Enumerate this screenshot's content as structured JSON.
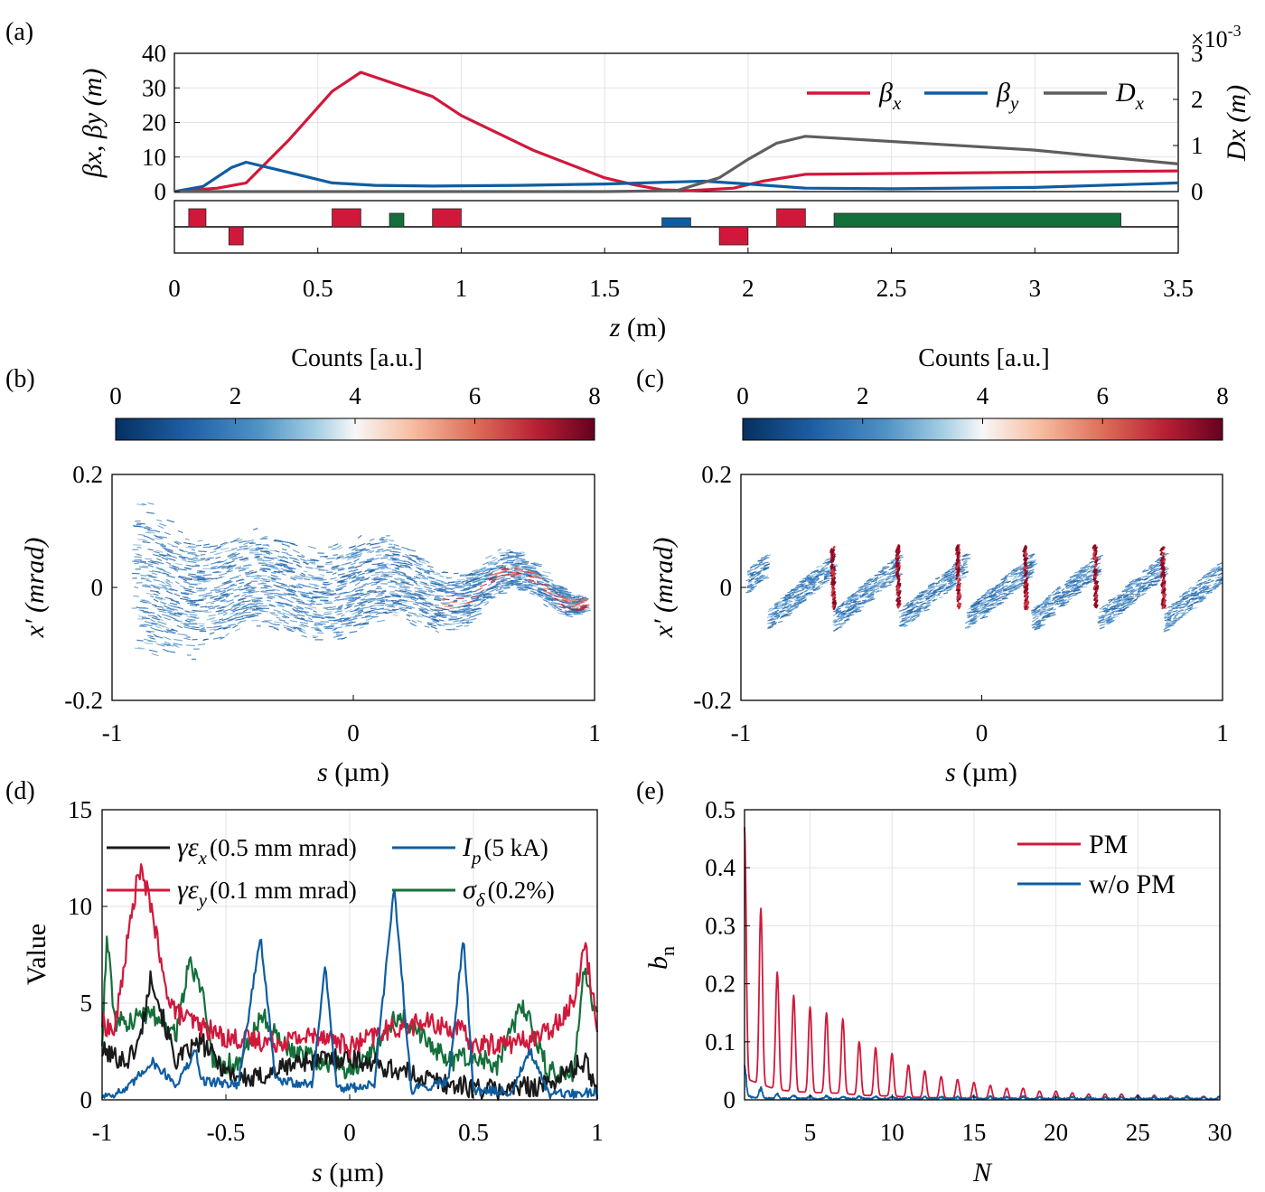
{
  "colors": {
    "red": "#D1183B",
    "blue": "#0E5DA2",
    "gray": "#5E5E5E",
    "green": "#14703A",
    "black": "#1A1A1A"
  },
  "chart_data": [
    {
      "panel": "a",
      "type": "line",
      "panel_label": "(a)",
      "xlabel_sym": "z",
      "xlabel_unit": " (m)",
      "ylabel": "βx, βy (m)",
      "ylabel_right": "Dx (m)",
      "right_multiplier_base": "×10",
      "right_multiplier_exp": "-3",
      "xlim": [
        0,
        3.5
      ],
      "ylim": [
        0,
        40
      ],
      "ylim_right": [
        0,
        3
      ],
      "xticks": [
        "0",
        "0.5",
        "1",
        "1.5",
        "2",
        "2.5",
        "3",
        "3.5"
      ],
      "yticks": [
        "0",
        "10",
        "20",
        "30",
        "40"
      ],
      "yticks_right": [
        "0",
        "1",
        "2",
        "3"
      ],
      "grid": true,
      "legend_position": "top-right",
      "series": [
        {
          "name": "βx",
          "sym": "β",
          "sub": "x",
          "color": "red",
          "axis": "left",
          "x": [
            0,
            0.15,
            0.25,
            0.4,
            0.55,
            0.65,
            0.9,
            1.0,
            1.25,
            1.5,
            1.6,
            1.7,
            1.8,
            1.95,
            2.05,
            2.2,
            3.5
          ],
          "y": [
            0,
            1,
            2.5,
            15,
            29,
            34.5,
            27.5,
            22,
            12,
            4,
            2,
            0.5,
            0.3,
            1,
            3,
            5,
            6
          ]
        },
        {
          "name": "βy",
          "sym": "β",
          "sub": "y",
          "color": "blue",
          "axis": "left",
          "x": [
            0,
            0.1,
            0.2,
            0.25,
            0.35,
            0.55,
            0.7,
            0.9,
            1.2,
            1.5,
            1.75,
            1.85,
            2.0,
            2.2,
            2.5,
            3.0,
            3.5
          ],
          "y": [
            0,
            1.5,
            7,
            8.5,
            6.5,
            2.5,
            1.8,
            1.6,
            1.8,
            2.2,
            2.8,
            3,
            2.2,
            1,
            0.8,
            1.2,
            2.5
          ]
        },
        {
          "name": "Dx",
          "sym": "D",
          "sub": "x",
          "color": "gray",
          "axis": "right",
          "x": [
            0,
            1.5,
            1.75,
            1.9,
            2.0,
            2.1,
            2.2,
            3.0,
            3.5
          ],
          "y": [
            0,
            0,
            0.02,
            0.3,
            0.7,
            1.05,
            1.2,
            0.9,
            0.6
          ]
        }
      ],
      "lattice": {
        "elements": [
          {
            "type": "quad-focusing",
            "color": "red",
            "z0": 0.05,
            "z1": 0.11
          },
          {
            "type": "quad-defocusing",
            "color": "red",
            "z0": 0.19,
            "z1": 0.24
          },
          {
            "type": "quad-focusing",
            "color": "red",
            "z0": 0.55,
            "z1": 0.65
          },
          {
            "type": "element",
            "color": "green",
            "z0": 0.75,
            "z1": 0.8
          },
          {
            "type": "quad-focusing",
            "color": "red",
            "z0": 0.9,
            "z1": 1.0
          },
          {
            "type": "element",
            "color": "blue",
            "z0": 1.7,
            "z1": 1.8
          },
          {
            "type": "quad-defocusing",
            "color": "red",
            "z0": 1.9,
            "z1": 2.0
          },
          {
            "type": "quad-focusing",
            "color": "red",
            "z0": 2.1,
            "z1": 2.2
          },
          {
            "type": "element",
            "color": "green",
            "z0": 2.3,
            "z1": 3.3
          }
        ]
      }
    },
    {
      "panel": "b",
      "type": "heatmap",
      "panel_label": "(b)",
      "colorbar_label": "Counts [a.u.]",
      "colorbar_ticks": [
        "0",
        "2",
        "4",
        "6",
        "8"
      ],
      "colorbar_range": [
        0,
        8
      ],
      "xlabel_sym": "s",
      "xlabel_unit": " (µm)",
      "ylabel": "x′ (mrad)",
      "xlim": [
        -1,
        1
      ],
      "ylim": [
        -0.2,
        0.2
      ],
      "xticks": [
        "-1",
        "0",
        "1"
      ],
      "yticks": [
        "-0.2",
        "0",
        "0.2"
      ],
      "description_pattern": "noisy wavy band, wide at s=-1 narrowing towards s=1",
      "band_envelope": {
        "s": [
          -0.9,
          -0.5,
          0,
          0.5,
          0.95
        ],
        "halfwidth_mrad": [
          0.15,
          0.09,
          0.09,
          0.05,
          0.02
        ]
      }
    },
    {
      "panel": "c",
      "type": "heatmap",
      "panel_label": "(c)",
      "colorbar_label": "Counts [a.u.]",
      "colorbar_ticks": [
        "0",
        "2",
        "4",
        "6",
        "8"
      ],
      "colorbar_range": [
        0,
        8
      ],
      "xlabel_sym": "s",
      "xlabel_unit": " (µm)",
      "ylabel": "x′ (mrad)",
      "xlim": [
        -1,
        1
      ],
      "ylim": [
        -0.2,
        0.2
      ],
      "xticks": [
        "-1",
        "0",
        "1"
      ],
      "yticks": [
        "-0.2",
        "0",
        "0.2"
      ],
      "description_pattern": "periodic sawtooth microbunches with dense red vertical spikes",
      "spike_positions_um": [
        -0.62,
        -0.35,
        -0.1,
        0.18,
        0.47,
        0.75
      ]
    },
    {
      "panel": "d",
      "type": "line",
      "panel_label": "(d)",
      "ylabel": "Value",
      "xlabel_sym": "s",
      "xlabel_unit": " (µm)",
      "xlim": [
        -1,
        1
      ],
      "ylim": [
        0,
        15
      ],
      "xticks": [
        "-1",
        "-0.5",
        "0",
        "0.5",
        "1"
      ],
      "yticks": [
        "0",
        "5",
        "10",
        "15"
      ],
      "grid": true,
      "legend_position": "top",
      "series": [
        {
          "name": "γεx (0.5 mm mrad)",
          "sym": "γε",
          "sub": "x",
          "note": "(0.5 mm mrad)",
          "color": "black",
          "x": [
            -1,
            -0.9,
            -0.85,
            -0.8,
            -0.75,
            -0.7,
            -0.6,
            -0.5,
            -0.4,
            -0.2,
            0,
            0.2,
            0.4,
            0.6,
            0.8,
            0.95,
            1
          ],
          "y": [
            2.5,
            2,
            3,
            6.5,
            4,
            2,
            3,
            1.5,
            1,
            2,
            2.2,
            1.5,
            0.8,
            0.5,
            0.8,
            2,
            0.5
          ]
        },
        {
          "name": "γεy (0.1 mm mrad)",
          "sym": "γε",
          "sub": "y",
          "note": "(0.1 mm mrad)",
          "color": "red",
          "x": [
            -1,
            -0.95,
            -0.9,
            -0.85,
            -0.8,
            -0.75,
            -0.7,
            -0.6,
            -0.5,
            -0.3,
            -0.1,
            0,
            0.15,
            0.3,
            0.45,
            0.5,
            0.7,
            0.8,
            0.9,
            0.95,
            1
          ],
          "y": [
            4,
            3.5,
            8,
            12,
            10,
            6,
            4.5,
            3.8,
            3.2,
            3,
            3.4,
            2.7,
            3.6,
            4,
            3.6,
            2.8,
            3,
            3.5,
            5,
            8,
            4
          ]
        },
        {
          "name": "Ip (5 kA)",
          "sym": "I",
          "sub": "p",
          "note": "(5 kA)",
          "color": "blue",
          "x": [
            -1,
            -0.9,
            -0.8,
            -0.7,
            -0.62,
            -0.6,
            -0.45,
            -0.36,
            -0.3,
            -0.15,
            -0.1,
            -0.05,
            0.1,
            0.18,
            0.25,
            0.4,
            0.46,
            0.5,
            0.65,
            0.73,
            0.8,
            0.9,
            1
          ],
          "y": [
            0.2,
            0.5,
            2,
            0.8,
            2.5,
            1,
            0.8,
            8.5,
            1,
            0.8,
            7,
            0.5,
            0.8,
            11,
            0.5,
            1,
            8.5,
            0.5,
            0.4,
            2.5,
            0.3,
            0.3,
            0.4
          ]
        },
        {
          "name": "σδ (0.2%)",
          "sym": "σ",
          "sub": "δ",
          "note": "(0.2%)",
          "color": "green",
          "x": [
            -1,
            -0.98,
            -0.95,
            -0.9,
            -0.8,
            -0.7,
            -0.65,
            -0.6,
            -0.55,
            -0.45,
            -0.35,
            -0.25,
            -0.1,
            0,
            0.1,
            0.2,
            0.3,
            0.4,
            0.5,
            0.6,
            0.7,
            0.8,
            0.9,
            0.95,
            1
          ],
          "y": [
            3,
            8.5,
            4,
            4,
            4.5,
            3.5,
            7,
            6,
            2,
            1.8,
            4.5,
            2.5,
            2,
            1.5,
            2.5,
            4.5,
            3.2,
            2,
            2.2,
            1.8,
            5,
            1.5,
            1.2,
            7,
            4
          ]
        }
      ]
    },
    {
      "panel": "e",
      "type": "line",
      "panel_label": "(e)",
      "ylabel_sym": "b",
      "ylabel_sub": "n",
      "xlabel_sym": "N",
      "xlim": [
        1,
        30
      ],
      "ylim": [
        0,
        0.5
      ],
      "xticks": [
        "5",
        "10",
        "15",
        "20",
        "25",
        "30"
      ],
      "yticks": [
        "0",
        "0.1",
        "0.2",
        "0.3",
        "0.4",
        "0.5"
      ],
      "grid": true,
      "legend_position": "top-right",
      "series": [
        {
          "name": "PM",
          "color": "red",
          "peaks_N": [
            1,
            2,
            3,
            4,
            5,
            6,
            7,
            8,
            9,
            10,
            11,
            12,
            13,
            14,
            15,
            16,
            17,
            18,
            19,
            20,
            21,
            22,
            23,
            24,
            25,
            26,
            27,
            28,
            29,
            30
          ],
          "peaks_bn": [
            0.47,
            0.33,
            0.22,
            0.18,
            0.16,
            0.15,
            0.14,
            0.1,
            0.09,
            0.08,
            0.06,
            0.05,
            0.04,
            0.035,
            0.03,
            0.025,
            0.02,
            0.02,
            0.015,
            0.015,
            0.012,
            0.01,
            0.01,
            0.01,
            0.008,
            0.008,
            0.007,
            0.007,
            0.006,
            0.006
          ]
        },
        {
          "name": "w/o PM",
          "color": "blue",
          "peaks_N": [
            1,
            2,
            3,
            4,
            5,
            10,
            20,
            30
          ],
          "peaks_bn": [
            0.07,
            0.02,
            0.01,
            0.008,
            0.006,
            0.005,
            0.004,
            0.004
          ]
        }
      ]
    }
  ]
}
